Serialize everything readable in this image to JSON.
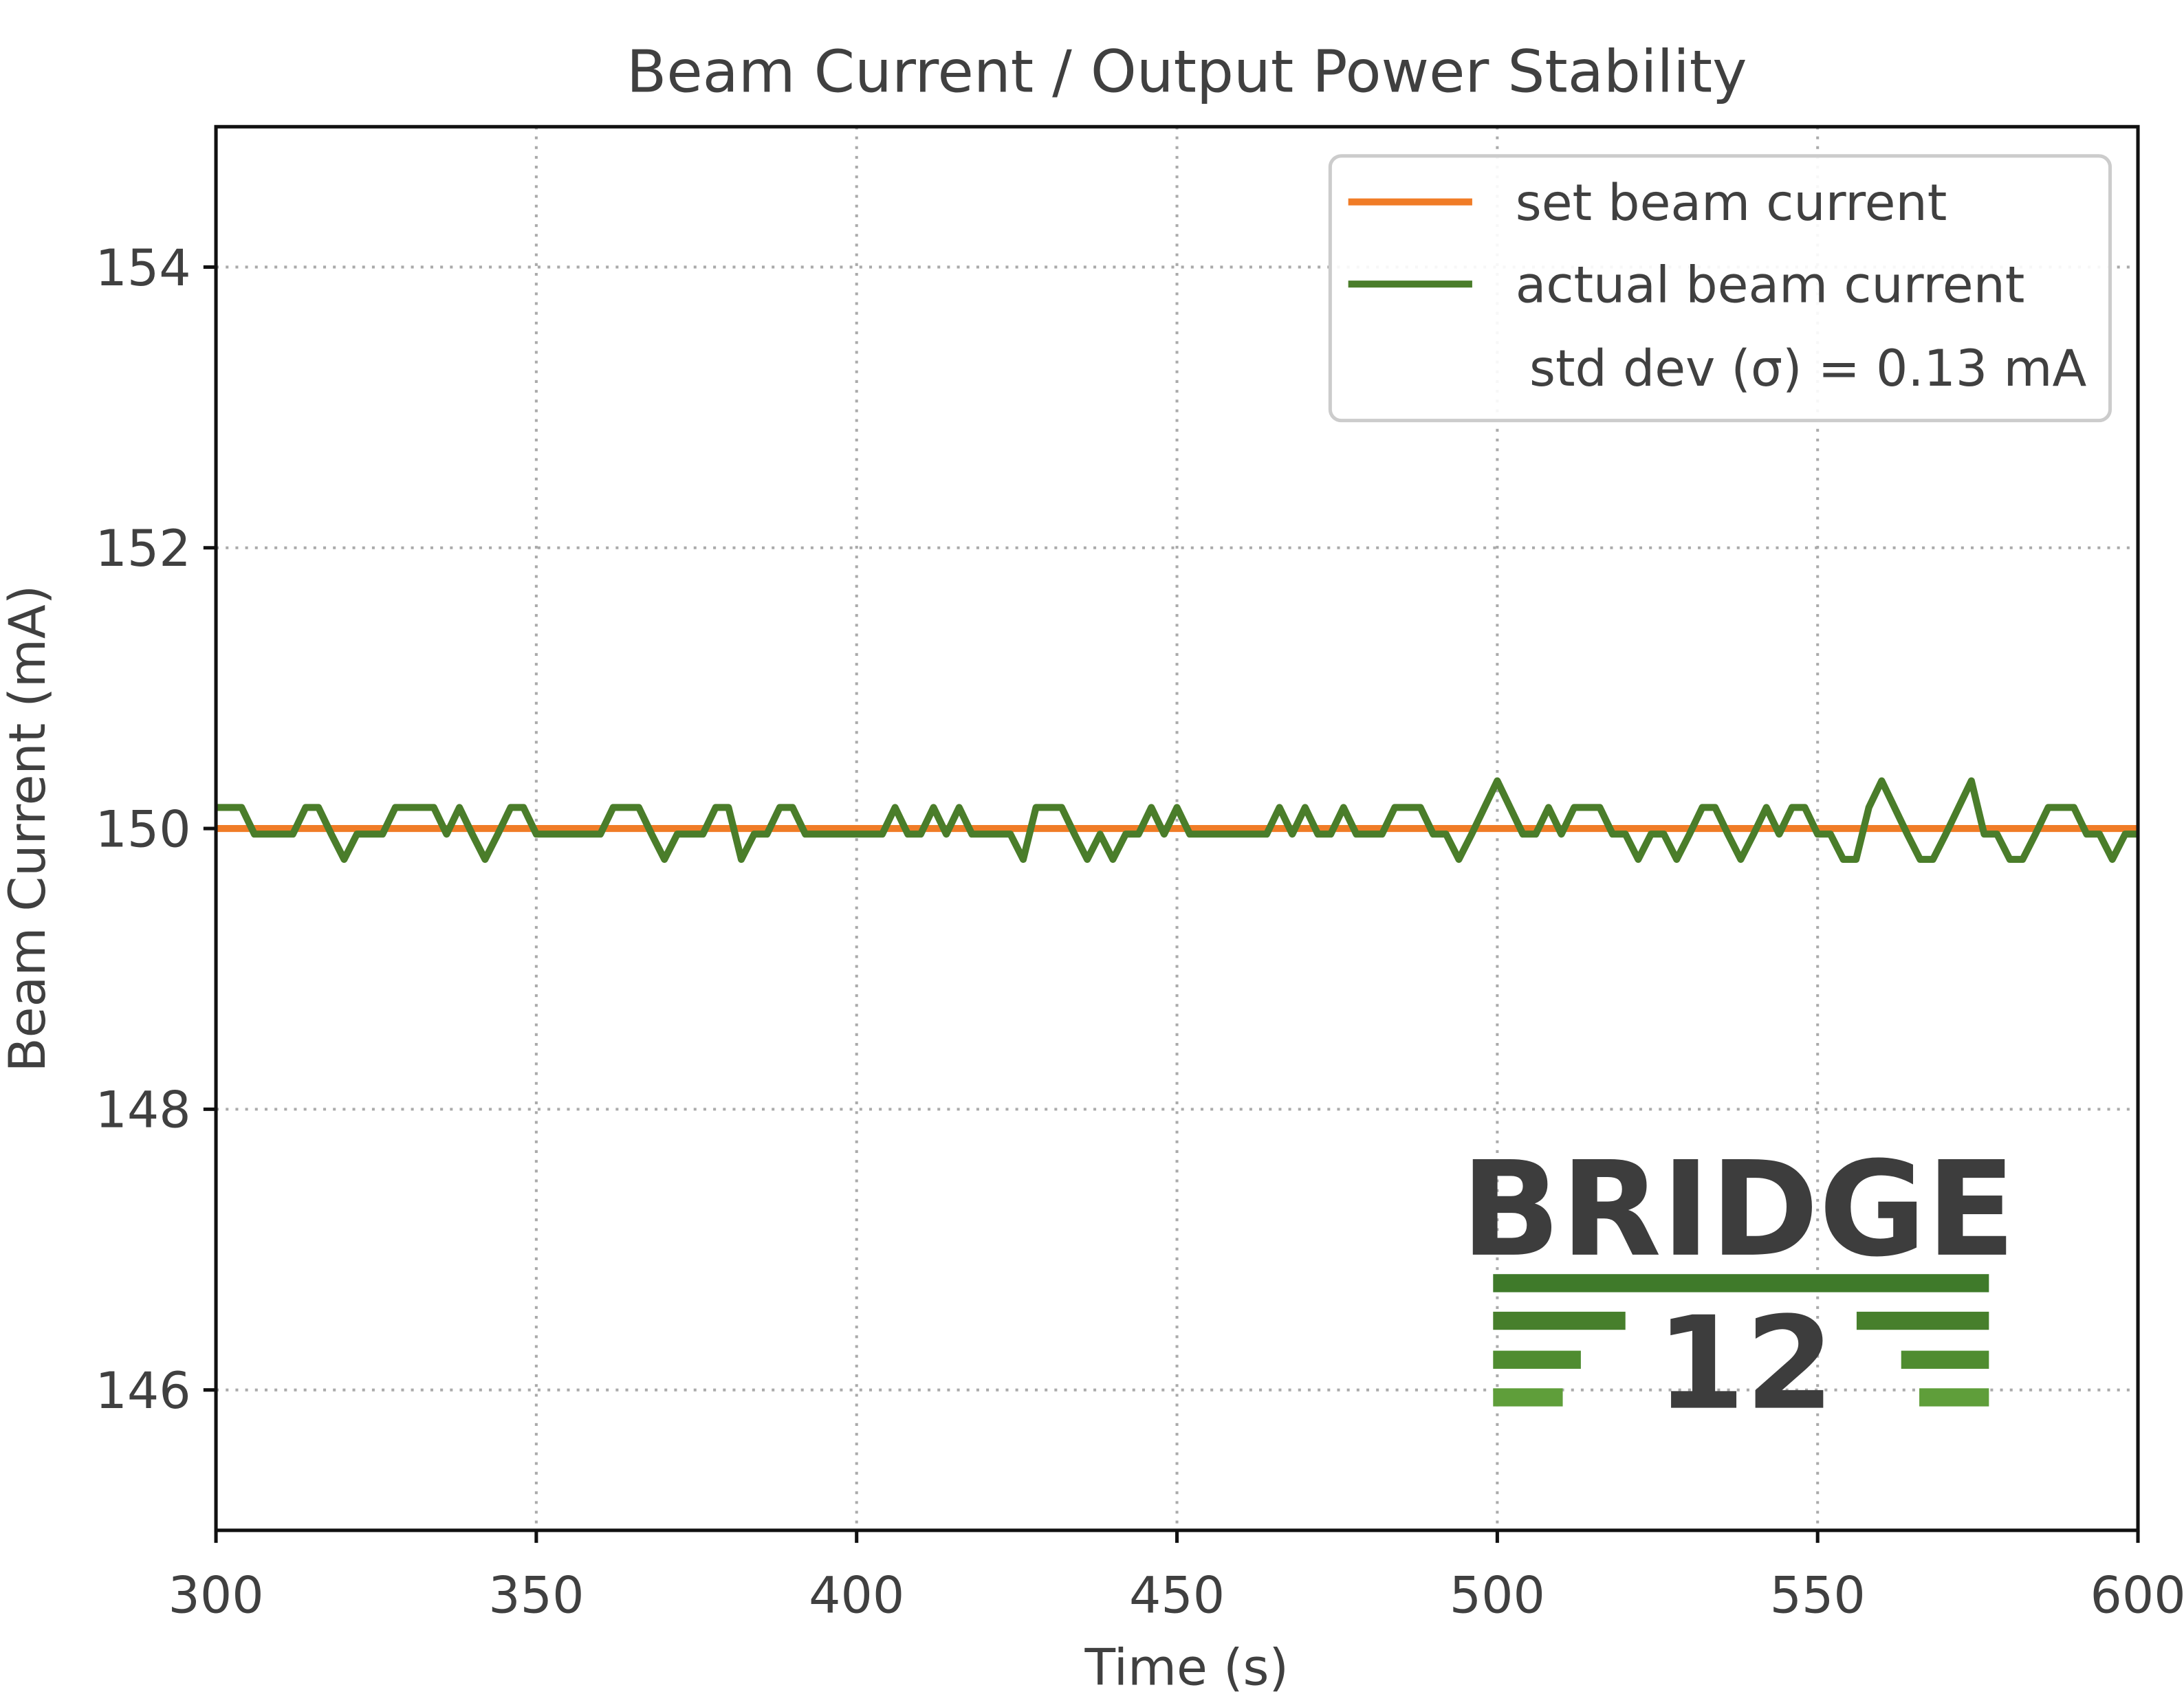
{
  "chart_data": {
    "type": "line",
    "title": "Beam Current / Output Power Stability",
    "xlabel": "Time (s)",
    "ylabel": "Beam Current (mA)",
    "xlim": [
      300,
      600
    ],
    "xticks": [
      300,
      350,
      400,
      450,
      500,
      550,
      600
    ],
    "ylim": [
      145,
      155
    ],
    "yticks": [
      146,
      148,
      150,
      152,
      154
    ],
    "grid": true,
    "legend": "upper right",
    "annotation": "std dev (σ) = 0.13 mA",
    "watermark": [
      "BRIDGE",
      "12"
    ],
    "series": [
      {
        "name": "set beam current",
        "color": "#f07c27",
        "x": [
          300,
          600
        ],
        "values": [
          150,
          150
        ]
      },
      {
        "name": "actual beam current",
        "color": "#4a7d2a",
        "x": [
          300,
          302,
          304,
          306,
          308,
          310,
          312,
          314,
          316,
          318,
          320,
          322,
          324,
          326,
          328,
          330,
          332,
          334,
          336,
          338,
          340,
          342,
          344,
          346,
          348,
          350,
          352,
          354,
          356,
          358,
          360,
          362,
          364,
          366,
          368,
          370,
          372,
          374,
          376,
          378,
          380,
          382,
          384,
          386,
          388,
          390,
          392,
          394,
          396,
          398,
          400,
          402,
          404,
          406,
          408,
          410,
          412,
          414,
          416,
          418,
          420,
          422,
          424,
          426,
          428,
          430,
          432,
          434,
          436,
          438,
          440,
          442,
          444,
          446,
          448,
          450,
          452,
          454,
          456,
          458,
          460,
          462,
          464,
          466,
          468,
          470,
          472,
          474,
          476,
          478,
          480,
          482,
          484,
          486,
          488,
          490,
          492,
          494,
          496,
          498,
          500,
          502,
          504,
          506,
          508,
          510,
          512,
          514,
          516,
          518,
          520,
          522,
          524,
          526,
          528,
          530,
          532,
          534,
          536,
          538,
          540,
          542,
          544,
          546,
          548,
          550,
          552,
          554,
          556,
          558,
          560,
          562,
          564,
          566,
          568,
          570,
          572,
          574,
          576,
          578,
          580,
          582,
          584,
          586,
          588,
          590,
          592,
          594,
          596,
          598,
          600
        ],
        "values": [
          150.15,
          150.15,
          150.15,
          149.96,
          149.96,
          149.96,
          149.96,
          150.15,
          150.15,
          149.96,
          149.78,
          149.96,
          149.96,
          149.96,
          150.15,
          150.15,
          150.15,
          150.15,
          149.96,
          150.15,
          149.96,
          149.78,
          149.96,
          150.15,
          150.15,
          149.96,
          149.96,
          149.96,
          149.96,
          149.96,
          149.96,
          150.15,
          150.15,
          150.15,
          149.96,
          149.78,
          149.96,
          149.96,
          149.96,
          150.15,
          150.15,
          149.78,
          149.96,
          149.96,
          150.15,
          150.15,
          149.96,
          149.96,
          149.96,
          149.96,
          149.96,
          149.96,
          149.96,
          150.15,
          149.96,
          149.96,
          150.15,
          149.96,
          150.15,
          149.96,
          149.96,
          149.96,
          149.96,
          149.78,
          150.15,
          150.15,
          150.15,
          149.96,
          149.78,
          149.96,
          149.78,
          149.96,
          149.96,
          150.15,
          149.96,
          150.15,
          149.96,
          149.96,
          149.96,
          149.96,
          149.96,
          149.96,
          149.96,
          150.15,
          149.96,
          150.15,
          149.96,
          149.96,
          150.15,
          149.96,
          149.96,
          149.96,
          150.15,
          150.15,
          150.15,
          149.96,
          149.96,
          149.78,
          149.96,
          150.15,
          150.34,
          150.15,
          149.96,
          149.96,
          150.15,
          149.96,
          150.15,
          150.15,
          150.15,
          149.96,
          149.96,
          149.78,
          149.96,
          149.96,
          149.78,
          149.96,
          150.15,
          150.15,
          149.96,
          149.78,
          149.96,
          150.15,
          149.96,
          150.15,
          150.15,
          149.96,
          149.96,
          149.78,
          149.78,
          150.15,
          150.34,
          150.15,
          149.96,
          149.78,
          149.78,
          149.96,
          150.15,
          150.34,
          149.96,
          149.96,
          149.78,
          149.78,
          149.96,
          150.15,
          150.15,
          150.15,
          149.96,
          149.96,
          149.78,
          149.96,
          149.96
        ]
      }
    ]
  }
}
